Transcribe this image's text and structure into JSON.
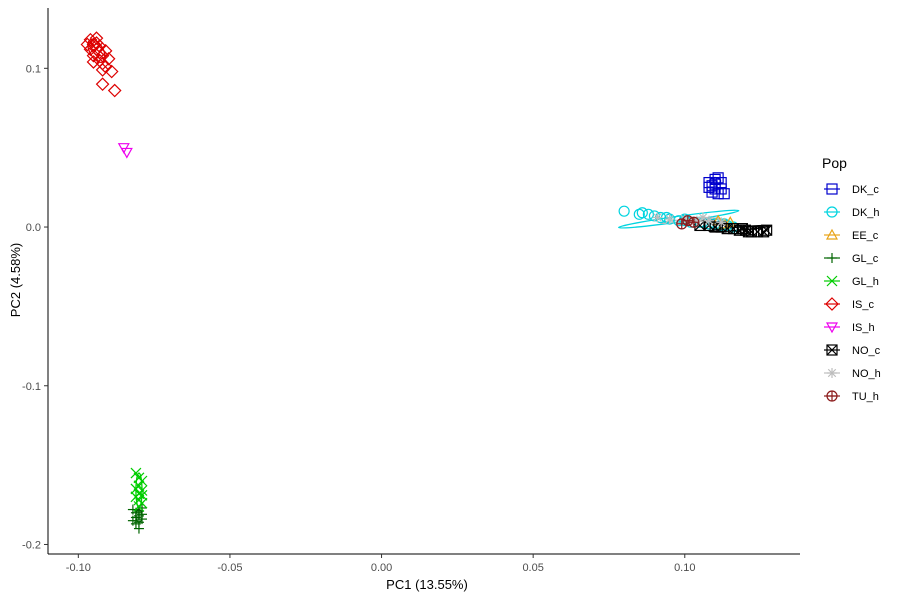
{
  "chart_data": {
    "type": "scatter",
    "title": "",
    "xlabel": "PC1 (13.55%)",
    "ylabel": "PC2 (4.58%)",
    "xlim": [
      -0.11,
      0.138
    ],
    "ylim": [
      -0.206,
      0.138
    ],
    "x_ticks": [
      -0.1,
      -0.05,
      0.0,
      0.05,
      0.1
    ],
    "x_tick_labels": [
      "-0.10",
      "-0.05",
      "0.00",
      "0.05",
      "0.10"
    ],
    "y_ticks": [
      -0.2,
      -0.1,
      0.0,
      0.1
    ],
    "y_tick_labels": [
      "-0.2",
      "-0.1",
      "0.0",
      "0.1"
    ],
    "grid": false,
    "legend_title": "Pop",
    "legend_position": "right",
    "series": [
      {
        "name": "DK_c",
        "color": "#0000CD",
        "shape": "square",
        "points": [
          [
            0.109,
            0.026
          ],
          [
            0.11,
            0.03
          ],
          [
            0.111,
            0.031
          ],
          [
            0.108,
            0.025
          ],
          [
            0.11,
            0.027
          ],
          [
            0.112,
            0.028
          ],
          [
            0.109,
            0.022
          ],
          [
            0.111,
            0.021
          ],
          [
            0.113,
            0.021
          ],
          [
            0.108,
            0.028
          ],
          [
            0.11,
            0.024
          ],
          [
            0.112,
            0.024
          ]
        ]
      },
      {
        "name": "DK_h",
        "color": "#00D4E0",
        "shape": "circle",
        "points": [
          [
            0.08,
            0.01
          ],
          [
            0.085,
            0.008
          ],
          [
            0.088,
            0.008
          ],
          [
            0.09,
            0.007
          ],
          [
            0.092,
            0.006
          ],
          [
            0.095,
            0.005
          ],
          [
            0.098,
            0.004
          ],
          [
            0.1,
            0.004
          ],
          [
            0.102,
            0.003
          ],
          [
            0.105,
            0.003
          ],
          [
            0.108,
            0.002
          ],
          [
            0.11,
            0.002
          ],
          [
            0.112,
            0.001
          ],
          [
            0.114,
            0.001
          ],
          [
            0.116,
            0.0
          ],
          [
            0.086,
            0.009
          ],
          [
            0.094,
            0.006
          ],
          [
            0.1,
            0.005
          ],
          [
            0.106,
            0.003
          ],
          [
            0.113,
            0.002
          ]
        ]
      },
      {
        "name": "EE_c",
        "color": "#E8A317",
        "shape": "triangle-up",
        "points": [
          [
            0.115,
            0.003
          ],
          [
            0.113,
            0.002
          ],
          [
            0.111,
            0.004
          ]
        ]
      },
      {
        "name": "GL_c",
        "color": "#006400",
        "shape": "plus",
        "points": [
          [
            -0.082,
            -0.178
          ],
          [
            -0.081,
            -0.18
          ],
          [
            -0.08,
            -0.182
          ],
          [
            -0.079,
            -0.184
          ],
          [
            -0.08,
            -0.186
          ],
          [
            -0.081,
            -0.183
          ],
          [
            -0.08,
            -0.19
          ],
          [
            -0.079,
            -0.181
          ],
          [
            -0.082,
            -0.185
          ],
          [
            -0.08,
            -0.179
          ],
          [
            -0.081,
            -0.187
          ],
          [
            -0.079,
            -0.177
          ]
        ]
      },
      {
        "name": "GL_h",
        "color": "#00CD00",
        "shape": "x",
        "points": [
          [
            -0.081,
            -0.155
          ],
          [
            -0.08,
            -0.158
          ],
          [
            -0.079,
            -0.16
          ],
          [
            -0.08,
            -0.163
          ],
          [
            -0.079,
            -0.166
          ],
          [
            -0.08,
            -0.168
          ],
          [
            -0.081,
            -0.17
          ],
          [
            -0.08,
            -0.172
          ],
          [
            -0.079,
            -0.174
          ],
          [
            -0.08,
            -0.176
          ],
          [
            -0.081,
            -0.165
          ],
          [
            -0.079,
            -0.169
          ]
        ]
      },
      {
        "name": "IS_c",
        "color": "#DD0000",
        "shape": "diamond",
        "points": [
          [
            -0.096,
            0.118
          ],
          [
            -0.095,
            0.115
          ],
          [
            -0.094,
            0.112
          ],
          [
            -0.093,
            0.11
          ],
          [
            -0.092,
            0.108
          ],
          [
            -0.094,
            0.116
          ],
          [
            -0.096,
            0.112
          ],
          [
            -0.093,
            0.105
          ],
          [
            -0.092,
            0.103
          ],
          [
            -0.091,
            0.101
          ],
          [
            -0.09,
            0.106
          ],
          [
            -0.095,
            0.108
          ],
          [
            -0.094,
            0.119
          ],
          [
            -0.089,
            0.098
          ],
          [
            -0.088,
            0.086
          ],
          [
            -0.092,
            0.09
          ],
          [
            -0.095,
            0.104
          ],
          [
            -0.093,
            0.114
          ],
          [
            -0.091,
            0.111
          ],
          [
            -0.097,
            0.115
          ],
          [
            -0.092,
            0.099
          ]
        ]
      },
      {
        "name": "IS_h",
        "color": "#EE00EE",
        "shape": "triangle-down",
        "points": [
          [
            -0.085,
            0.05
          ],
          [
            -0.084,
            0.047
          ]
        ]
      },
      {
        "name": "NO_c",
        "color": "#000000",
        "shape": "square-cross",
        "points": [
          [
            0.108,
            0.001
          ],
          [
            0.11,
            0.0
          ],
          [
            0.112,
            0.0
          ],
          [
            0.114,
            -0.001
          ],
          [
            0.116,
            -0.001
          ],
          [
            0.118,
            -0.002
          ],
          [
            0.12,
            -0.002
          ],
          [
            0.122,
            -0.003
          ],
          [
            0.124,
            -0.003
          ],
          [
            0.126,
            -0.003
          ],
          [
            0.105,
            0.001
          ],
          [
            0.119,
            -0.001
          ],
          [
            0.121,
            -0.003
          ],
          [
            0.127,
            -0.002
          ]
        ]
      },
      {
        "name": "NO_h",
        "color": "#BDBDBD",
        "shape": "star",
        "points": [
          [
            0.091,
            0.006
          ],
          [
            0.095,
            0.005
          ],
          [
            0.1,
            0.005
          ],
          [
            0.104,
            0.004
          ],
          [
            0.108,
            0.004
          ],
          [
            0.112,
            0.003
          ],
          [
            0.106,
            0.006
          ],
          [
            0.102,
            0.003
          ]
        ]
      },
      {
        "name": "TU_h",
        "color": "#8B1A1A",
        "shape": "circle-plus",
        "points": [
          [
            0.101,
            0.004
          ],
          [
            0.099,
            0.002
          ],
          [
            0.103,
            0.003
          ]
        ]
      }
    ],
    "ellipses": [
      {
        "series": "DK_c",
        "cx": 0.11,
        "cy": 0.029,
        "rx": 0.0018,
        "ry": 0.0022,
        "angle_deg": 0
      },
      {
        "series": "DK_h",
        "cx": 0.098,
        "cy": 0.005,
        "rx": 0.02,
        "ry": 0.0018,
        "angle_deg": -8
      },
      {
        "series": "GL_h",
        "cx": -0.08,
        "cy": -0.166,
        "rx": 0.001,
        "ry": 0.011,
        "angle_deg": 0
      },
      {
        "series": "GL_c",
        "cx": -0.08,
        "cy": -0.182,
        "rx": 0.001,
        "ry": 0.004,
        "angle_deg": 0
      },
      {
        "series": "IS_c",
        "cx": -0.094,
        "cy": 0.111,
        "rx": 0.0022,
        "ry": 0.008,
        "angle_deg": -30
      },
      {
        "series": "NO_c",
        "cx": 0.118,
        "cy": -0.001,
        "rx": 0.01,
        "ry": 0.001,
        "angle_deg": -5
      },
      {
        "series": "NO_h",
        "cx": 0.102,
        "cy": 0.004,
        "rx": 0.01,
        "ry": 0.001,
        "angle_deg": -4
      }
    ]
  }
}
